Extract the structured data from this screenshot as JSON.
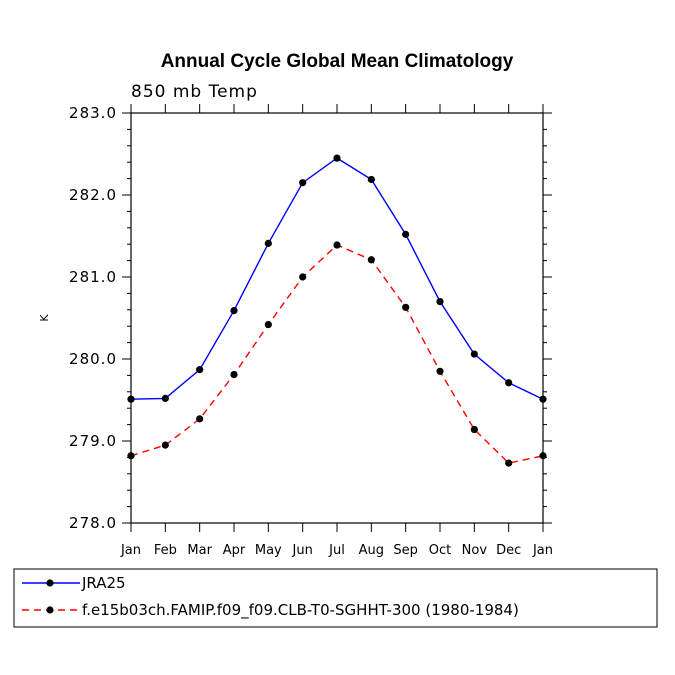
{
  "chart_data": {
    "type": "line",
    "title": "Annual Cycle Global Mean Climatology",
    "subtitle": "850 mb Temp",
    "xlabel": "",
    "ylabel": "K",
    "categories": [
      "Jan",
      "Feb",
      "Mar",
      "Apr",
      "May",
      "Jun",
      "Jul",
      "Aug",
      "Sep",
      "Oct",
      "Nov",
      "Dec",
      "Jan"
    ],
    "ylim": [
      278.0,
      283.0
    ],
    "yticks": [
      "278.0",
      "279.0",
      "280.0",
      "281.0",
      "282.0",
      "283.0"
    ],
    "series": [
      {
        "name": "JRA25",
        "color": "#0000ff",
        "dash": "solid",
        "values": [
          279.51,
          279.52,
          279.87,
          280.59,
          281.41,
          282.15,
          282.45,
          282.19,
          281.52,
          280.7,
          280.06,
          279.71,
          279.51
        ]
      },
      {
        "name": "f.e15b03ch.FAMIP.f09_f09.CLB-T0-SGHHT-300 (1980-1984)",
        "color": "#ff0000",
        "dash": "dashed",
        "values": [
          278.82,
          278.95,
          279.27,
          279.81,
          280.42,
          281.0,
          281.39,
          281.21,
          280.63,
          279.85,
          279.14,
          278.73,
          278.82
        ]
      }
    ],
    "legend_position": "bottom-left"
  }
}
